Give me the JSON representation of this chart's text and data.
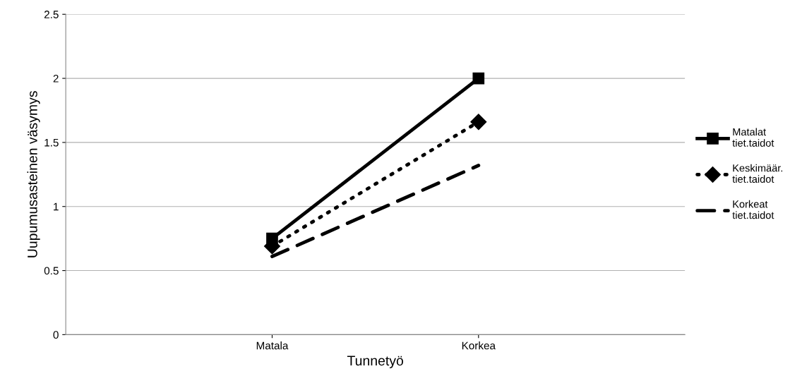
{
  "chart_data": {
    "type": "line",
    "xlabel": "Tunnetyö",
    "ylabel": "Uupumusasteinen väsymys",
    "categories": [
      "Matala",
      "Korkea"
    ],
    "series": [
      {
        "name": "Matalat tiet.taidot",
        "color": "#000000",
        "values": [
          0.75,
          2.0
        ],
        "marker": "square",
        "line_style": "solid"
      },
      {
        "name": "Keskimäär. tiet.taidot",
        "color": "#000000",
        "values": [
          0.69,
          1.66
        ],
        "marker": "diamond",
        "line_style": "dotted"
      },
      {
        "name": "Korkeat tiet.taidot",
        "color": "#000000",
        "values": [
          0.61,
          1.32
        ],
        "marker": "none",
        "line_style": "dashed"
      }
    ],
    "ylim": [
      0,
      2.5
    ],
    "yticks": [
      0,
      0.5,
      1,
      1.5,
      2,
      2.5
    ],
    "grid": "y",
    "legend": "right"
  }
}
